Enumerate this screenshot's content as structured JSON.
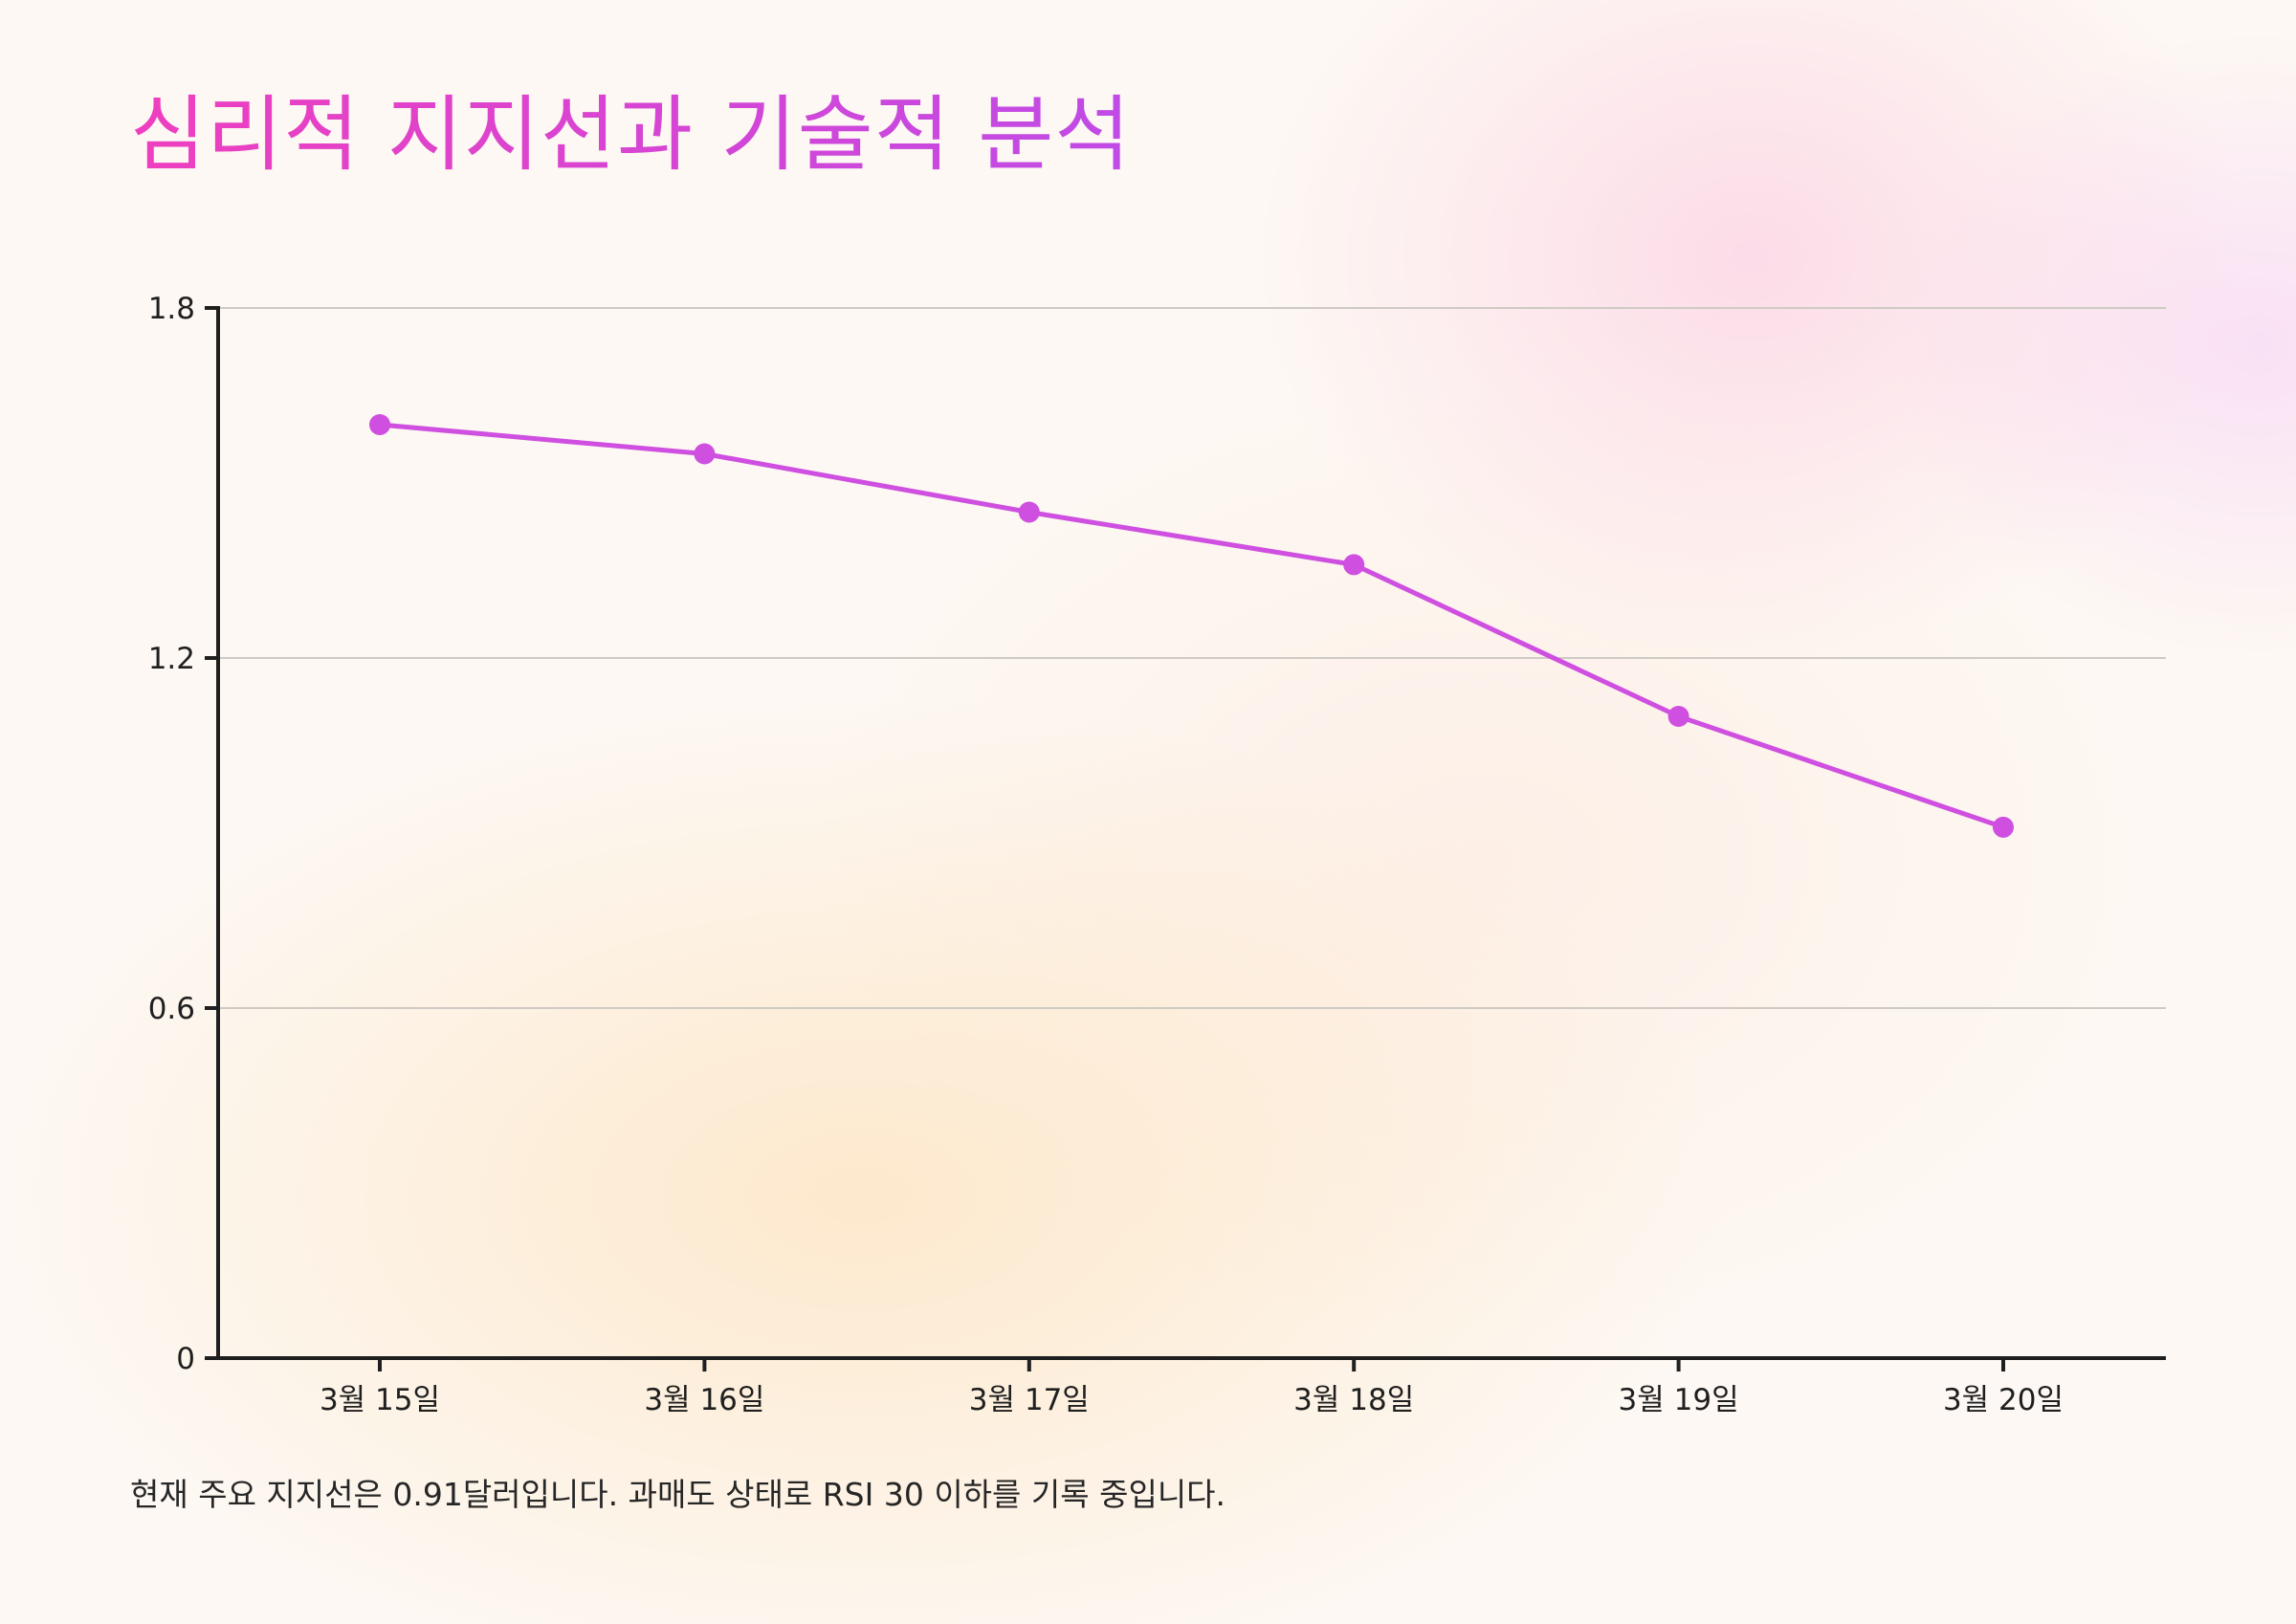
{
  "title": "심리적 지지선과 기술적 분석",
  "caption": "현재 주요 지지선은 0.91달러입니다. 과매도 상태로 RSI 30 이하를 기록 중입니다.",
  "colors": {
    "line": "#cf4fe0",
    "title_start": "#ee3fbf",
    "title_end": "#c04be6",
    "gridline": "#cfcac4",
    "axis": "#1f1f1f"
  },
  "chart_data": {
    "type": "line",
    "title": "심리적 지지선과 기술적 분석",
    "xlabel": "",
    "ylabel": "",
    "categories": [
      "3월 15일",
      "3월 16일",
      "3월 17일",
      "3월 18일",
      "3월 19일",
      "3월 20일"
    ],
    "series": [
      {
        "values": [
          1.6,
          1.55,
          1.45,
          1.36,
          1.1,
          0.91
        ]
      }
    ],
    "ylim": [
      0,
      1.8
    ],
    "yticks": [
      "0",
      "0.6",
      "1.2",
      "1.8"
    ],
    "grid": "horizontal",
    "legend": "none"
  }
}
